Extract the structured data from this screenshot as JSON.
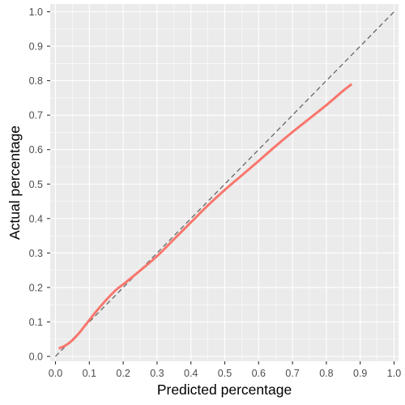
{
  "chart_data": {
    "type": "line",
    "title": "",
    "xlabel": "Predicted percentage",
    "ylabel": "Actual percentage",
    "xlim": [
      0.0,
      1.0
    ],
    "ylim": [
      0.0,
      1.0
    ],
    "x_ticks": [
      0.0,
      0.1,
      0.2,
      0.3,
      0.4,
      0.5,
      0.6,
      0.7,
      0.8,
      0.9,
      1.0
    ],
    "y_ticks": [
      0.0,
      0.1,
      0.2,
      0.3,
      0.4,
      0.5,
      0.6,
      0.7,
      0.8,
      0.9,
      1.0
    ],
    "x_tick_labels": [
      "0.0",
      "0.1",
      "0.2",
      "0.3",
      "0.4",
      "0.5",
      "0.6",
      "0.7",
      "0.8",
      "0.9",
      "1.0"
    ],
    "y_tick_labels": [
      "0.0",
      "0.1",
      "0.2",
      "0.3",
      "0.4",
      "0.5",
      "0.6",
      "0.7",
      "0.8",
      "0.9",
      "1.0"
    ],
    "grid": true,
    "reference_line": {
      "x": [
        0.0,
        1.0
      ],
      "y": [
        0.0,
        1.0
      ],
      "style": "dashed",
      "color": "#666666"
    },
    "series": [
      {
        "color": "#F8766D",
        "x": [
          0.01,
          0.03,
          0.05,
          0.07,
          0.09,
          0.12,
          0.15,
          0.18,
          0.2,
          0.25,
          0.3,
          0.35,
          0.4,
          0.45,
          0.5,
          0.55,
          0.6,
          0.65,
          0.7,
          0.75,
          0.8,
          0.85,
          0.875
        ],
        "y": [
          0.023,
          0.032,
          0.047,
          0.068,
          0.093,
          0.13,
          0.164,
          0.194,
          0.209,
          0.249,
          0.291,
          0.34,
          0.389,
          0.438,
          0.483,
          0.525,
          0.567,
          0.61,
          0.651,
          0.69,
          0.729,
          0.771,
          0.79
        ]
      }
    ]
  }
}
